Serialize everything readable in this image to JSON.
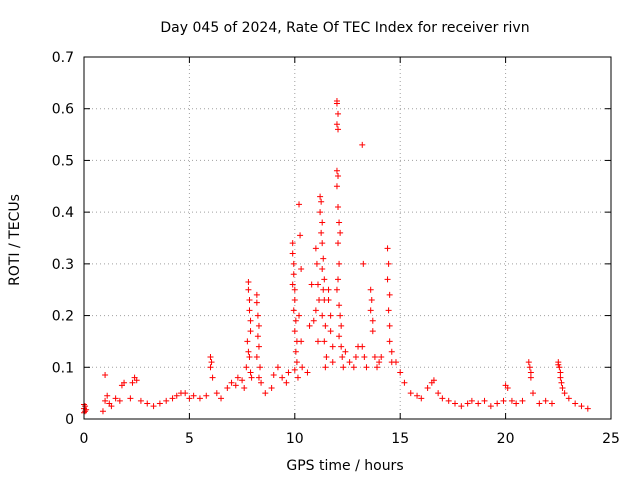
{
  "chart_data": {
    "type": "scatter",
    "title": "Day 045 of 2024, Rate Of TEC Index for receiver rivn",
    "xlabel": "GPS time / hours",
    "ylabel": "ROTI / TECUs",
    "xlim": [
      0,
      25
    ],
    "ylim": [
      0,
      0.7
    ],
    "xticks": [
      0,
      5,
      10,
      15,
      20,
      25
    ],
    "yticks": [
      0,
      0.1,
      0.2,
      0.3,
      0.4,
      0.5,
      0.6,
      0.7
    ],
    "grid": true,
    "marker": "+",
    "series": [
      {
        "name": "ROTI",
        "color": "#ff0000",
        "points": [
          [
            0.0,
            0.012
          ],
          [
            0.0,
            0.02
          ],
          [
            0.0,
            0.028
          ],
          [
            0.05,
            0.015
          ],
          [
            0.05,
            0.025
          ],
          [
            0.1,
            0.018
          ],
          [
            0.9,
            0.015
          ],
          [
            1.0,
            0.085
          ],
          [
            1.0,
            0.035
          ],
          [
            1.1,
            0.045
          ],
          [
            1.2,
            0.03
          ],
          [
            1.3,
            0.025
          ],
          [
            1.5,
            0.04
          ],
          [
            1.7,
            0.035
          ],
          [
            1.8,
            0.065
          ],
          [
            1.9,
            0.07
          ],
          [
            2.2,
            0.04
          ],
          [
            2.3,
            0.07
          ],
          [
            2.4,
            0.08
          ],
          [
            2.5,
            0.075
          ],
          [
            2.7,
            0.035
          ],
          [
            3.0,
            0.03
          ],
          [
            3.3,
            0.025
          ],
          [
            3.6,
            0.03
          ],
          [
            3.9,
            0.035
          ],
          [
            4.2,
            0.04
          ],
          [
            4.4,
            0.045
          ],
          [
            4.6,
            0.05
          ],
          [
            4.8,
            0.05
          ],
          [
            5.0,
            0.04
          ],
          [
            5.2,
            0.045
          ],
          [
            5.5,
            0.04
          ],
          [
            5.8,
            0.045
          ],
          [
            6.0,
            0.12
          ],
          [
            6.0,
            0.1
          ],
          [
            6.05,
            0.11
          ],
          [
            6.1,
            0.08
          ],
          [
            6.3,
            0.05
          ],
          [
            6.5,
            0.04
          ],
          [
            6.8,
            0.06
          ],
          [
            7.0,
            0.07
          ],
          [
            7.2,
            0.065
          ],
          [
            7.3,
            0.08
          ],
          [
            7.5,
            0.075
          ],
          [
            7.6,
            0.06
          ],
          [
            7.8,
            0.265
          ],
          [
            7.8,
            0.25
          ],
          [
            7.85,
            0.23
          ],
          [
            7.85,
            0.21
          ],
          [
            7.9,
            0.19
          ],
          [
            7.9,
            0.17
          ],
          [
            7.75,
            0.15
          ],
          [
            7.8,
            0.13
          ],
          [
            7.85,
            0.12
          ],
          [
            7.7,
            0.1
          ],
          [
            7.9,
            0.09
          ],
          [
            7.95,
            0.08
          ],
          [
            8.2,
            0.24
          ],
          [
            8.2,
            0.225
          ],
          [
            8.25,
            0.2
          ],
          [
            8.3,
            0.18
          ],
          [
            8.25,
            0.16
          ],
          [
            8.3,
            0.14
          ],
          [
            8.2,
            0.12
          ],
          [
            8.35,
            0.1
          ],
          [
            8.3,
            0.08
          ],
          [
            8.4,
            0.07
          ],
          [
            8.6,
            0.05
          ],
          [
            8.9,
            0.06
          ],
          [
            9.0,
            0.085
          ],
          [
            9.2,
            0.1
          ],
          [
            9.4,
            0.08
          ],
          [
            9.6,
            0.07
          ],
          [
            9.7,
            0.09
          ],
          [
            9.9,
            0.34
          ],
          [
            9.9,
            0.32
          ],
          [
            9.95,
            0.3
          ],
          [
            9.95,
            0.28
          ],
          [
            9.9,
            0.26
          ],
          [
            10.0,
            0.25
          ],
          [
            10.0,
            0.23
          ],
          [
            9.95,
            0.21
          ],
          [
            10.05,
            0.19
          ],
          [
            10.0,
            0.17
          ],
          [
            10.1,
            0.15
          ],
          [
            10.05,
            0.13
          ],
          [
            10.1,
            0.11
          ],
          [
            10.0,
            0.095
          ],
          [
            10.15,
            0.08
          ],
          [
            10.2,
            0.415
          ],
          [
            10.25,
            0.355
          ],
          [
            10.3,
            0.29
          ],
          [
            10.2,
            0.2
          ],
          [
            10.3,
            0.15
          ],
          [
            10.35,
            0.1
          ],
          [
            10.6,
            0.09
          ],
          [
            10.7,
            0.18
          ],
          [
            10.8,
            0.26
          ],
          [
            10.9,
            0.19
          ],
          [
            11.0,
            0.33
          ],
          [
            11.05,
            0.3
          ],
          [
            11.1,
            0.26
          ],
          [
            11.15,
            0.23
          ],
          [
            11.0,
            0.21
          ],
          [
            11.1,
            0.15
          ],
          [
            11.2,
            0.43
          ],
          [
            11.25,
            0.42
          ],
          [
            11.2,
            0.4
          ],
          [
            11.3,
            0.38
          ],
          [
            11.25,
            0.36
          ],
          [
            11.3,
            0.34
          ],
          [
            11.35,
            0.31
          ],
          [
            11.3,
            0.29
          ],
          [
            11.4,
            0.27
          ],
          [
            11.35,
            0.25
          ],
          [
            11.4,
            0.23
          ],
          [
            11.3,
            0.2
          ],
          [
            11.45,
            0.18
          ],
          [
            11.4,
            0.15
          ],
          [
            11.5,
            0.12
          ],
          [
            11.45,
            0.1
          ],
          [
            11.6,
            0.25
          ],
          [
            11.6,
            0.23
          ],
          [
            11.7,
            0.2
          ],
          [
            11.7,
            0.17
          ],
          [
            11.8,
            0.14
          ],
          [
            11.8,
            0.11
          ],
          [
            12.0,
            0.615
          ],
          [
            12.0,
            0.61
          ],
          [
            12.05,
            0.59
          ],
          [
            12.0,
            0.57
          ],
          [
            12.05,
            0.56
          ],
          [
            12.0,
            0.48
          ],
          [
            12.05,
            0.47
          ],
          [
            12.0,
            0.45
          ],
          [
            12.05,
            0.41
          ],
          [
            12.1,
            0.38
          ],
          [
            12.05,
            0.34
          ],
          [
            12.15,
            0.36
          ],
          [
            12.1,
            0.3
          ],
          [
            12.05,
            0.27
          ],
          [
            12.0,
            0.25
          ],
          [
            12.1,
            0.22
          ],
          [
            12.15,
            0.2
          ],
          [
            12.2,
            0.18
          ],
          [
            12.1,
            0.16
          ],
          [
            12.2,
            0.14
          ],
          [
            12.25,
            0.12
          ],
          [
            12.3,
            0.1
          ],
          [
            12.4,
            0.13
          ],
          [
            12.6,
            0.11
          ],
          [
            12.8,
            0.1
          ],
          [
            12.9,
            0.12
          ],
          [
            13.0,
            0.14
          ],
          [
            13.2,
            0.53
          ],
          [
            13.25,
            0.3
          ],
          [
            13.2,
            0.14
          ],
          [
            13.3,
            0.12
          ],
          [
            13.4,
            0.1
          ],
          [
            13.6,
            0.25
          ],
          [
            13.65,
            0.23
          ],
          [
            13.6,
            0.21
          ],
          [
            13.7,
            0.19
          ],
          [
            13.7,
            0.17
          ],
          [
            13.8,
            0.12
          ],
          [
            13.9,
            0.1
          ],
          [
            14.0,
            0.11
          ],
          [
            14.1,
            0.12
          ],
          [
            14.4,
            0.33
          ],
          [
            14.45,
            0.3
          ],
          [
            14.4,
            0.27
          ],
          [
            14.5,
            0.24
          ],
          [
            14.45,
            0.21
          ],
          [
            14.5,
            0.18
          ],
          [
            14.5,
            0.15
          ],
          [
            14.6,
            0.13
          ],
          [
            14.6,
            0.11
          ],
          [
            14.8,
            0.11
          ],
          [
            15.0,
            0.09
          ],
          [
            15.2,
            0.07
          ],
          [
            15.5,
            0.05
          ],
          [
            15.8,
            0.045
          ],
          [
            16.0,
            0.04
          ],
          [
            16.3,
            0.06
          ],
          [
            16.5,
            0.07
          ],
          [
            16.6,
            0.075
          ],
          [
            16.8,
            0.05
          ],
          [
            17.0,
            0.04
          ],
          [
            17.3,
            0.035
          ],
          [
            17.6,
            0.03
          ],
          [
            17.9,
            0.025
          ],
          [
            18.2,
            0.03
          ],
          [
            18.4,
            0.035
          ],
          [
            18.7,
            0.03
          ],
          [
            19.0,
            0.035
          ],
          [
            19.3,
            0.025
          ],
          [
            19.6,
            0.03
          ],
          [
            19.9,
            0.035
          ],
          [
            20.0,
            0.065
          ],
          [
            20.1,
            0.06
          ],
          [
            20.3,
            0.035
          ],
          [
            20.5,
            0.03
          ],
          [
            20.8,
            0.035
          ],
          [
            21.1,
            0.11
          ],
          [
            21.15,
            0.1
          ],
          [
            21.2,
            0.09
          ],
          [
            21.2,
            0.08
          ],
          [
            21.3,
            0.05
          ],
          [
            21.6,
            0.03
          ],
          [
            21.9,
            0.035
          ],
          [
            22.2,
            0.03
          ],
          [
            22.5,
            0.11
          ],
          [
            22.5,
            0.105
          ],
          [
            22.55,
            0.1
          ],
          [
            22.6,
            0.09
          ],
          [
            22.6,
            0.08
          ],
          [
            22.65,
            0.07
          ],
          [
            22.7,
            0.06
          ],
          [
            22.8,
            0.05
          ],
          [
            23.0,
            0.04
          ],
          [
            23.3,
            0.03
          ],
          [
            23.6,
            0.025
          ],
          [
            23.9,
            0.02
          ]
        ]
      }
    ]
  }
}
